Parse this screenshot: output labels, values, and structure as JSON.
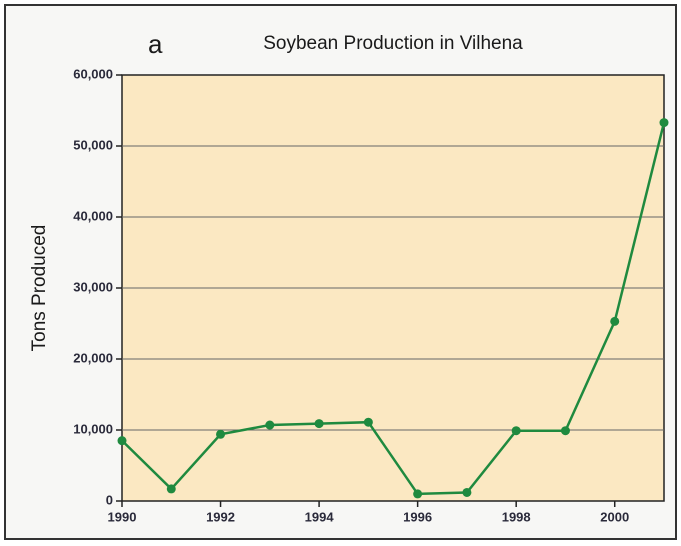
{
  "chart_data": {
    "type": "line",
    "annotation": "a",
    "title": "Soybean Production in Vilhena",
    "ylabel": "Tons Produced",
    "x": [
      1990,
      1991,
      1992,
      1993,
      1994,
      1995,
      1996,
      1997,
      1998,
      1999,
      2000,
      2001
    ],
    "series": [
      {
        "color": "#1f8a3f",
        "values": [
          8500,
          1700,
          9400,
          10700,
          10900,
          11100,
          1000,
          1200,
          9900,
          9900,
          25300,
          53300
        ]
      }
    ],
    "xlim": [
      1990,
      2001
    ],
    "xticks": [
      1990,
      1992,
      1994,
      1996,
      1998,
      2000
    ],
    "ylim": [
      0,
      60000
    ],
    "yticks": [
      0,
      {
        "value": 10000,
        "label": "10,000"
      },
      {
        "value": 20000,
        "label": "20,000"
      },
      {
        "value": 30000,
        "label": "30,000"
      },
      {
        "value": 40000,
        "label": "40,000"
      },
      {
        "value": 50000,
        "label": "50,000"
      },
      {
        "value": 60000,
        "label": "60,000"
      }
    ],
    "grid": true,
    "plot_background": "#fbe8c2"
  }
}
